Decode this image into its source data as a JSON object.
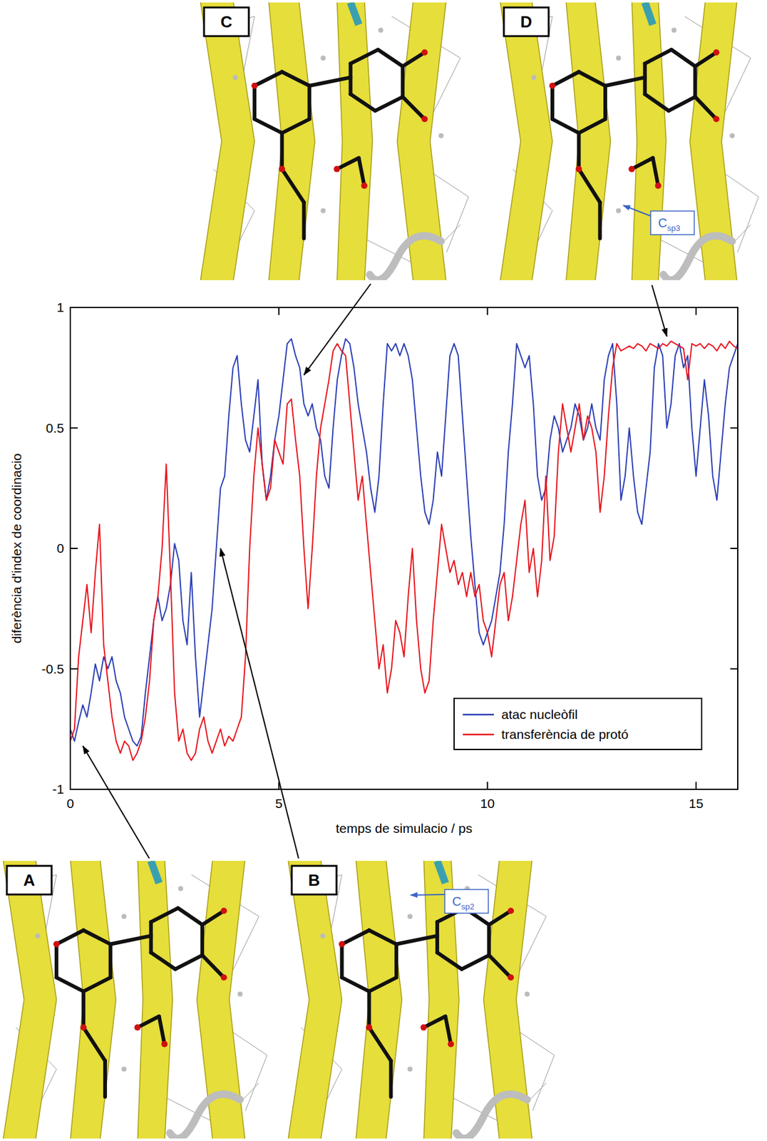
{
  "chart_data": {
    "type": "line",
    "x_label": "temps de simulacio / ps",
    "y_label": "diferència d'index de coordinacio",
    "xlim": [
      0,
      16
    ],
    "ylim": [
      -1,
      1
    ],
    "xticks": [
      0,
      5,
      10,
      15
    ],
    "yticks": [
      -1,
      -0.5,
      0,
      0.5,
      1
    ],
    "grid": false,
    "legend": "lower right",
    "x": [
      0,
      0.1,
      0.2,
      0.3,
      0.4,
      0.5,
      0.6,
      0.7,
      0.8,
      0.9,
      1,
      1.1,
      1.2,
      1.3,
      1.4,
      1.5,
      1.6,
      1.7,
      1.8,
      1.9,
      2,
      2.1,
      2.2,
      2.3,
      2.4,
      2.5,
      2.6,
      2.7,
      2.8,
      2.9,
      3,
      3.1,
      3.2,
      3.3,
      3.4,
      3.5,
      3.6,
      3.7,
      3.8,
      3.9,
      4,
      4.1,
      4.2,
      4.3,
      4.4,
      4.5,
      4.6,
      4.7,
      4.8,
      4.9,
      5,
      5.1,
      5.2,
      5.3,
      5.4,
      5.5,
      5.6,
      5.7,
      5.8,
      5.9,
      6,
      6.1,
      6.2,
      6.3,
      6.4,
      6.5,
      6.6,
      6.7,
      6.8,
      6.9,
      7,
      7.1,
      7.2,
      7.3,
      7.4,
      7.5,
      7.6,
      7.7,
      7.8,
      7.9,
      8,
      8.1,
      8.2,
      8.3,
      8.4,
      8.5,
      8.6,
      8.7,
      8.8,
      8.9,
      9,
      9.1,
      9.2,
      9.3,
      9.4,
      9.5,
      9.6,
      9.7,
      9.8,
      9.9,
      10,
      10.1,
      10.2,
      10.3,
      10.4,
      10.5,
      10.6,
      10.7,
      10.8,
      10.9,
      11,
      11.1,
      11.2,
      11.3,
      11.4,
      11.5,
      11.6,
      11.7,
      11.8,
      11.9,
      12,
      12.1,
      12.2,
      12.3,
      12.4,
      12.5,
      12.6,
      12.7,
      12.8,
      12.9,
      13,
      13.1,
      13.2,
      13.3,
      13.4,
      13.5,
      13.6,
      13.7,
      13.8,
      13.9,
      14,
      14.1,
      14.2,
      14.3,
      14.4,
      14.5,
      14.6,
      14.7,
      14.8,
      14.9,
      15,
      15.1,
      15.2,
      15.3,
      15.4,
      15.5,
      15.6,
      15.7,
      15.8,
      15.9,
      16
    ],
    "series": [
      {
        "name": "atac nucleòfil",
        "color": "#2b3fb5",
        "values": [
          -0.75,
          -0.8,
          -0.72,
          -0.65,
          -0.7,
          -0.6,
          -0.48,
          -0.55,
          -0.45,
          -0.5,
          -0.45,
          -0.55,
          -0.6,
          -0.7,
          -0.75,
          -0.8,
          -0.82,
          -0.78,
          -0.6,
          -0.45,
          -0.3,
          -0.2,
          -0.3,
          -0.25,
          -0.15,
          0.02,
          -0.05,
          -0.3,
          -0.4,
          -0.1,
          -0.45,
          -0.7,
          -0.55,
          -0.4,
          -0.25,
          0.0,
          0.25,
          0.3,
          0.55,
          0.75,
          0.8,
          0.6,
          0.45,
          0.4,
          0.55,
          0.7,
          0.35,
          0.2,
          0.3,
          0.45,
          0.55,
          0.7,
          0.85,
          0.87,
          0.8,
          0.75,
          0.6,
          0.55,
          0.6,
          0.5,
          0.45,
          0.3,
          0.25,
          0.5,
          0.7,
          0.8,
          0.87,
          0.85,
          0.75,
          0.6,
          0.5,
          0.4,
          0.25,
          0.15,
          0.3,
          0.6,
          0.85,
          0.82,
          0.85,
          0.8,
          0.85,
          0.8,
          0.7,
          0.5,
          0.3,
          0.15,
          0.1,
          0.2,
          0.4,
          0.3,
          0.55,
          0.8,
          0.85,
          0.8,
          0.55,
          0.3,
          0.05,
          -0.15,
          -0.35,
          -0.4,
          -0.35,
          -0.3,
          -0.2,
          -0.1,
          0.1,
          0.4,
          0.6,
          0.85,
          0.8,
          0.75,
          0.8,
          0.6,
          0.3,
          0.2,
          0.25,
          0.45,
          0.55,
          0.5,
          0.4,
          0.45,
          0.5,
          0.6,
          0.55,
          0.45,
          0.5,
          0.6,
          0.5,
          0.45,
          0.7,
          0.8,
          0.85,
          0.6,
          0.2,
          0.3,
          0.5,
          0.3,
          0.15,
          0.1,
          0.25,
          0.4,
          0.75,
          0.85,
          0.8,
          0.5,
          0.6,
          0.8,
          0.85,
          0.75,
          0.8,
          0.5,
          0.3,
          0.5,
          0.7,
          0.55,
          0.3,
          0.2,
          0.4,
          0.6,
          0.75,
          0.8,
          0.85
        ]
      },
      {
        "name": "transferència de protó",
        "color": "#e8141c",
        "values": [
          -0.8,
          -0.75,
          -0.45,
          -0.3,
          -0.15,
          -0.35,
          -0.1,
          0.1,
          -0.4,
          -0.55,
          -0.7,
          -0.8,
          -0.85,
          -0.8,
          -0.82,
          -0.88,
          -0.85,
          -0.8,
          -0.7,
          -0.55,
          -0.3,
          -0.2,
          0.0,
          0.35,
          -0.1,
          -0.6,
          -0.8,
          -0.75,
          -0.85,
          -0.88,
          -0.85,
          -0.75,
          -0.7,
          -0.8,
          -0.85,
          -0.8,
          -0.75,
          -0.82,
          -0.78,
          -0.8,
          -0.75,
          -0.7,
          -0.45,
          0.0,
          0.3,
          0.5,
          0.35,
          0.2,
          0.25,
          0.45,
          0.4,
          0.35,
          0.6,
          0.62,
          0.45,
          0.3,
          0.0,
          -0.25,
          0.0,
          0.3,
          0.5,
          0.6,
          0.7,
          0.82,
          0.85,
          0.82,
          0.8,
          0.6,
          0.4,
          0.2,
          0.3,
          0.1,
          -0.1,
          -0.3,
          -0.5,
          -0.4,
          -0.6,
          -0.5,
          -0.3,
          -0.35,
          -0.45,
          -0.2,
          0.0,
          -0.3,
          -0.5,
          -0.6,
          -0.55,
          -0.3,
          -0.1,
          0.1,
          0.0,
          -0.1,
          -0.05,
          -0.15,
          -0.1,
          -0.2,
          -0.1,
          -0.2,
          -0.15,
          -0.3,
          -0.35,
          -0.45,
          -0.3,
          -0.15,
          -0.1,
          -0.3,
          -0.2,
          -0.05,
          0.1,
          0.2,
          -0.1,
          0.0,
          -0.2,
          -0.05,
          0.3,
          -0.05,
          0.05,
          0.4,
          0.6,
          0.5,
          0.4,
          0.5,
          0.6,
          0.45,
          0.55,
          0.5,
          0.4,
          0.15,
          0.3,
          0.55,
          0.75,
          0.85,
          0.82,
          0.83,
          0.84,
          0.83,
          0.85,
          0.84,
          0.82,
          0.85,
          0.84,
          0.83,
          0.85,
          0.84,
          0.86,
          0.85,
          0.84,
          0.83,
          0.7,
          0.85,
          0.84,
          0.85,
          0.83,
          0.85,
          0.84,
          0.82,
          0.85,
          0.83,
          0.86,
          0.84,
          0.83
        ]
      }
    ],
    "annotations": [
      {
        "label": "A",
        "x": 0.3,
        "y": -0.82
      },
      {
        "label": "B",
        "x": 3.6,
        "y": 0.0,
        "callout": {
          "text": "C",
          "sub": "sp2"
        }
      },
      {
        "label": "C",
        "x": 5.6,
        "y": 0.72
      },
      {
        "label": "D",
        "x": 14.3,
        "y": 0.88,
        "callout": {
          "text": "C",
          "sub": "sp3"
        }
      }
    ]
  }
}
